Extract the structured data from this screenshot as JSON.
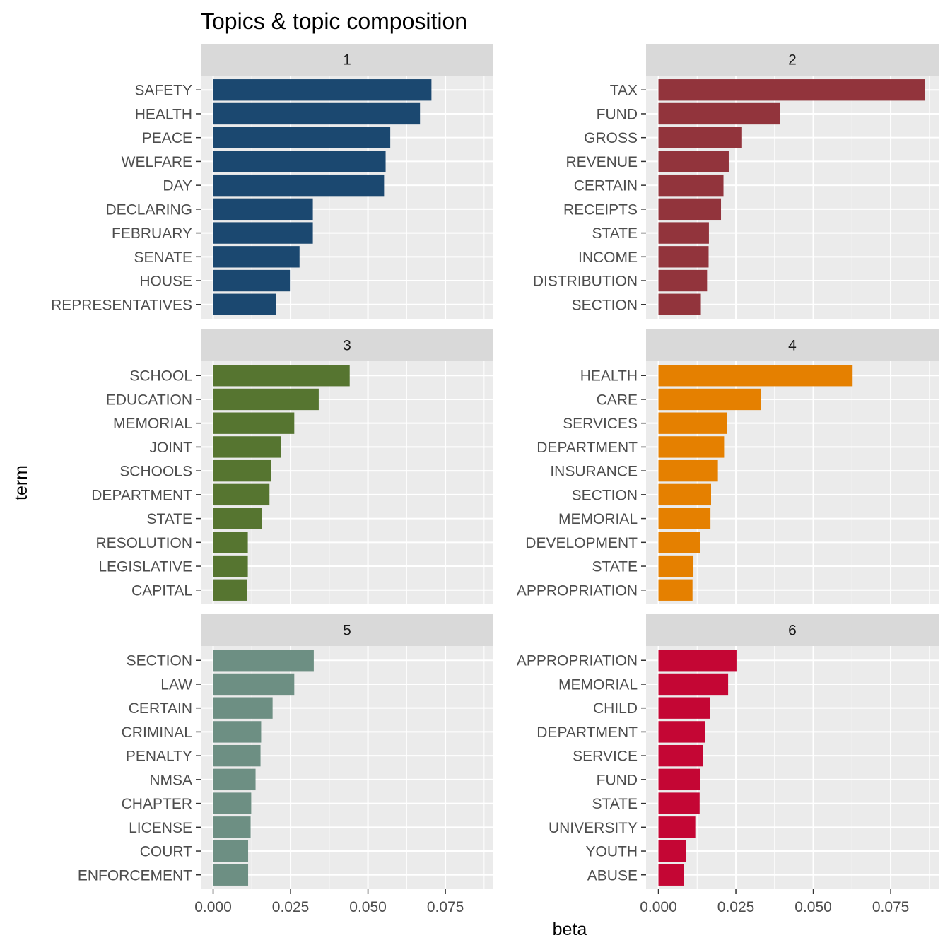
{
  "chart_data": {
    "type": "bar",
    "orientation": "horizontal",
    "title": "Topics & topic composition",
    "xlabel": "beta",
    "ylabel": "term",
    "xlim": [
      -0.004,
      0.0905
    ],
    "x_ticks": [
      0.0,
      0.025,
      0.05,
      0.075
    ],
    "x_tick_labels": [
      "0.000",
      "0.025",
      "0.050",
      "0.075"
    ],
    "grid": true,
    "legend": "none",
    "facets": [
      {
        "label": "1",
        "color": "#1b4870",
        "terms": [
          "SAFETY",
          "HEALTH",
          "PEACE",
          "WELFARE",
          "DAY",
          "DECLARING",
          "FEBRUARY",
          "SENATE",
          "HOUSE",
          "REPRESENTATIVES"
        ],
        "values": [
          0.0705,
          0.0668,
          0.0572,
          0.0557,
          0.0552,
          0.0322,
          0.0322,
          0.0279,
          0.0248,
          0.0203
        ]
      },
      {
        "label": "2",
        "color": "#92343c",
        "terms": [
          "TAX",
          "FUND",
          "GROSS",
          "REVENUE",
          "CERTAIN",
          "RECEIPTS",
          "STATE",
          "INCOME",
          "DISTRIBUTION",
          "SECTION"
        ],
        "values": [
          0.086,
          0.0392,
          0.027,
          0.0227,
          0.021,
          0.0202,
          0.0163,
          0.0162,
          0.0157,
          0.0137
        ]
      },
      {
        "label": "3",
        "color": "#567530",
        "terms": [
          "SCHOOL",
          "EDUCATION",
          "MEMORIAL",
          "JOINT",
          "SCHOOLS",
          "DEPARTMENT",
          "STATE",
          "RESOLUTION",
          "LEGISLATIVE",
          "CAPITAL"
        ],
        "values": [
          0.0441,
          0.0341,
          0.0262,
          0.0218,
          0.0188,
          0.0182,
          0.0157,
          0.0112,
          0.0112,
          0.011
        ]
      },
      {
        "label": "4",
        "color": "#e58000",
        "terms": [
          "HEALTH",
          "CARE",
          "SERVICES",
          "DEPARTMENT",
          "INSURANCE",
          "SECTION",
          "MEMORIAL",
          "DEVELOPMENT",
          "STATE",
          "APPROPRIATION"
        ],
        "values": [
          0.0627,
          0.033,
          0.0222,
          0.0212,
          0.0192,
          0.017,
          0.0168,
          0.0135,
          0.0113,
          0.011
        ]
      },
      {
        "label": "5",
        "color": "#6d8f83",
        "terms": [
          "SECTION",
          "LAW",
          "CERTAIN",
          "CRIMINAL",
          "PENALTY",
          "NMSA",
          "CHAPTER",
          "LICENSE",
          "COURT",
          "ENFORCEMENT"
        ],
        "values": [
          0.0325,
          0.0262,
          0.0192,
          0.0155,
          0.0153,
          0.0137,
          0.0123,
          0.0121,
          0.0113,
          0.0113
        ]
      },
      {
        "label": "6",
        "color": "#c40634",
        "terms": [
          "APPROPRIATION",
          "MEMORIAL",
          "CHILD",
          "DEPARTMENT",
          "SERVICE",
          "FUND",
          "STATE",
          "UNIVERSITY",
          "YOUTH",
          "ABUSE"
        ],
        "values": [
          0.0252,
          0.0225,
          0.0167,
          0.0151,
          0.0143,
          0.0135,
          0.0133,
          0.0119,
          0.009,
          0.0082
        ]
      }
    ]
  }
}
